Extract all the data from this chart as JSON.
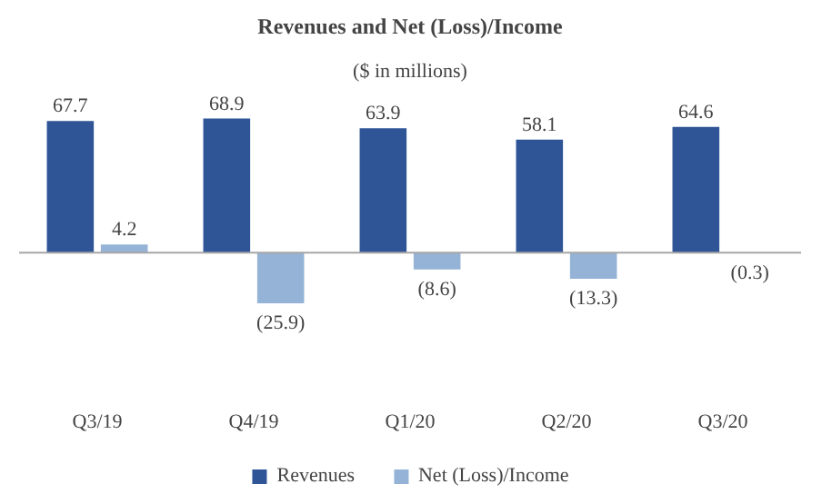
{
  "chart_data": {
    "type": "bar",
    "title": "Revenues and Net (Loss)/Income",
    "subtitle": "($ in millions)",
    "categories": [
      "Q3/19",
      "Q4/19",
      "Q1/20",
      "Q2/20",
      "Q3/20"
    ],
    "series": [
      {
        "name": "Revenues",
        "color": "#2f5597",
        "values": [
          67.7,
          68.9,
          63.9,
          58.1,
          64.6
        ],
        "value_labels": [
          "67.7",
          "68.9",
          "63.9",
          "58.1",
          "64.6"
        ]
      },
      {
        "name": "Net (Loss)/Income",
        "color": "#95b3d7",
        "values": [
          4.2,
          -25.9,
          -8.6,
          -13.3,
          -0.3
        ],
        "value_labels": [
          "4.2",
          "(25.9)",
          "(8.6)",
          "(13.3)",
          "(0.3)"
        ]
      }
    ],
    "legend": "bottom",
    "grid": false
  }
}
